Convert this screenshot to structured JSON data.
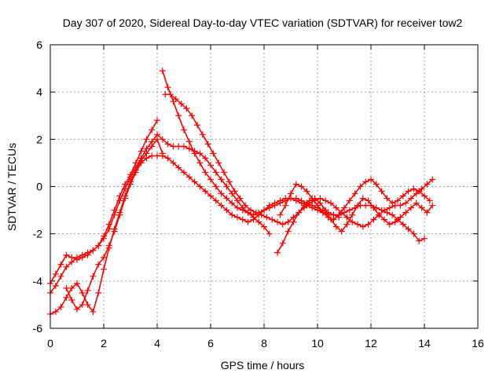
{
  "chart_data": {
    "type": "scatter",
    "title": "Day 307 of 2020, Sidereal Day-to-day VTEC variation (SDTVAR) for receiver tow2",
    "xlabel": "GPS time / hours",
    "ylabel": "SDTVAR / TECUs",
    "xlim": [
      0,
      16
    ],
    "ylim": [
      -6,
      6
    ],
    "x_ticks": [
      "0",
      "2",
      "4",
      "6",
      "8",
      "10",
      "12",
      "14",
      "16"
    ],
    "y_ticks": [
      "-6",
      "-4",
      "-2",
      "0",
      "2",
      "4",
      "6"
    ],
    "grid": true,
    "marker": "+",
    "color": "#ff0000",
    "series": [
      {
        "x": [
          0.0,
          0.2,
          0.4,
          0.6,
          0.8,
          1.0,
          1.2,
          1.4,
          1.6,
          1.8,
          2.0,
          2.2,
          2.4,
          2.6,
          2.8,
          3.0,
          3.2,
          3.4,
          3.6,
          3.8,
          4.0
        ],
        "y": [
          -4.1,
          -3.7,
          -3.3,
          -2.9,
          -3.0,
          -3.1,
          -3.0,
          -2.9,
          -2.7,
          -2.5,
          -2.1,
          -1.6,
          -1.0,
          -0.4,
          0.1,
          0.5,
          1.0,
          1.5,
          2.0,
          2.4,
          2.8
        ]
      },
      {
        "x": [
          0.0,
          0.2,
          0.4,
          0.6,
          0.8,
          1.0,
          1.2,
          1.4,
          1.6,
          1.8,
          2.0,
          2.2,
          2.4,
          2.6,
          2.8,
          3.0,
          3.2,
          3.4,
          3.6,
          3.8,
          4.0,
          4.2,
          4.4,
          4.6,
          4.8,
          5.0,
          5.2,
          5.4,
          5.6,
          5.8,
          6.0,
          6.2,
          6.4,
          6.6,
          6.8,
          7.0,
          7.2,
          7.4,
          7.6,
          7.8,
          8.0,
          8.2
        ],
        "y": [
          -4.5,
          -4.2,
          -3.8,
          -3.4,
          -3.2,
          -3.0,
          -2.9,
          -2.8,
          -2.7,
          -2.5,
          -2.2,
          -1.8,
          -1.2,
          -0.6,
          -0.1,
          0.4,
          0.8,
          1.2,
          1.6,
          1.9,
          2.2,
          2.0,
          1.8,
          1.7,
          1.7,
          1.7,
          1.6,
          1.5,
          1.4,
          1.2,
          0.9,
          0.6,
          0.3,
          0.0,
          -0.3,
          -0.6,
          -0.9,
          -1.1,
          -1.3,
          -1.5,
          -1.7,
          -2.0
        ]
      },
      {
        "x": [
          0.0,
          0.2,
          0.4,
          0.6,
          0.8,
          1.0,
          1.2,
          1.4,
          1.6,
          1.8,
          2.0,
          2.2,
          2.4,
          2.6,
          2.8,
          3.0,
          3.2,
          3.4,
          3.6,
          3.8,
          4.0,
          4.2
        ],
        "y": [
          -5.4,
          -5.3,
          -5.1,
          -4.7,
          -4.3,
          -4.1,
          -4.5,
          -5.0,
          -5.3,
          -4.5,
          -3.5,
          -2.6,
          -1.8,
          -1.1,
          -0.4,
          0.2,
          0.7,
          1.1,
          1.4,
          1.7,
          2.0,
          1.4
        ]
      },
      {
        "x": [
          0.6,
          0.8,
          1.0,
          1.2,
          1.4,
          1.6,
          1.8,
          2.0,
          2.2,
          2.4,
          2.6,
          2.8,
          3.0,
          3.2,
          3.4,
          3.6,
          3.8,
          4.0,
          4.2,
          4.4,
          4.6,
          4.8,
          5.0,
          5.2,
          5.4,
          5.6,
          5.8,
          6.0,
          6.2,
          6.4,
          6.6,
          6.8,
          7.0,
          7.2,
          7.4,
          7.6,
          7.8,
          8.0,
          8.2,
          8.4,
          8.6,
          8.8,
          9.0,
          9.2,
          9.4,
          9.6,
          9.8,
          10.0,
          10.2,
          10.4,
          10.6,
          10.8
        ],
        "y": [
          -4.3,
          -4.8,
          -5.2,
          -5.0,
          -4.4,
          -3.8,
          -3.3,
          -3.0,
          -2.5,
          -1.9,
          -1.2,
          -0.5,
          0.1,
          0.6,
          1.0,
          1.2,
          1.3,
          1.3,
          1.3,
          1.2,
          1.0,
          0.8,
          0.6,
          0.4,
          0.2,
          0.0,
          -0.2,
          -0.4,
          -0.6,
          -0.8,
          -1.0,
          -1.2,
          -1.3,
          -1.4,
          -1.5,
          -1.4,
          -1.2,
          -1.0,
          -0.8,
          -0.7,
          -0.6,
          -0.5,
          -0.5,
          -0.6,
          -0.7,
          -0.8,
          -0.9,
          -1.0,
          -1.1,
          -1.2,
          -1.2,
          -1.3
        ]
      },
      {
        "x": [
          4.2,
          4.4,
          4.6,
          4.8,
          5.0,
          5.2,
          5.4,
          5.6,
          5.8,
          6.0,
          6.2,
          6.4,
          6.6,
          6.8,
          7.0,
          7.2,
          7.4,
          7.6,
          7.8,
          8.0,
          8.2,
          8.4,
          8.6,
          8.8,
          9.0,
          9.2,
          9.4,
          9.6,
          9.8,
          10.0,
          10.2,
          10.4,
          10.6,
          10.8,
          11.0,
          11.2,
          11.4,
          11.6,
          11.8,
          12.0,
          12.2,
          12.4,
          12.6,
          12.8,
          13.0,
          13.2,
          13.4,
          13.6,
          13.8,
          14.0
        ],
        "y": [
          4.9,
          4.2,
          3.6,
          3.0,
          2.4,
          1.9,
          1.4,
          1.0,
          0.6,
          0.3,
          0.0,
          -0.3,
          -0.5,
          -0.7,
          -0.9,
          -1.0,
          -1.1,
          -1.2,
          -1.1,
          -1.0,
          -0.9,
          -0.8,
          -0.7,
          -0.6,
          -0.5,
          -0.5,
          -0.6,
          -0.7,
          -0.8,
          -0.9,
          -1.0,
          -1.1,
          -1.2,
          -1.2,
          -1.1,
          -1.0,
          -0.9,
          -0.8,
          -0.8,
          -0.8,
          -0.9,
          -1.0,
          -1.1,
          -1.2,
          -1.4,
          -1.6,
          -1.8,
          -2.0,
          -2.3,
          -2.2
        ]
      },
      {
        "x": [
          4.3,
          4.5,
          4.7,
          4.9,
          5.1,
          5.3,
          5.5,
          5.7,
          5.9,
          6.1,
          6.3,
          6.5,
          6.7,
          6.9,
          7.1,
          7.3,
          7.5,
          7.7,
          7.9,
          8.1,
          8.3,
          8.5,
          8.7,
          8.9,
          9.1,
          9.3,
          9.5,
          9.7,
          9.9,
          10.1,
          10.3,
          10.5,
          10.7,
          10.9,
          11.1,
          11.3,
          11.5,
          11.7,
          11.9,
          12.1,
          12.3,
          12.5,
          12.7,
          12.9,
          13.1,
          13.3,
          13.5,
          13.7,
          13.9,
          14.1,
          14.3
        ],
        "y": [
          3.9,
          3.9,
          3.7,
          3.5,
          3.3,
          3.0,
          2.6,
          2.2,
          1.8,
          1.4,
          1.0,
          0.6,
          0.2,
          -0.2,
          -0.5,
          -0.8,
          -1.0,
          -1.1,
          -1.2,
          -1.3,
          -1.4,
          -1.5,
          -1.6,
          -1.5,
          -1.3,
          -1.1,
          -0.9,
          -0.7,
          -0.6,
          -0.5,
          -0.6,
          -0.7,
          -0.9,
          -1.1,
          -1.3,
          -1.5,
          -1.6,
          -1.7,
          -1.6,
          -1.4,
          -1.2,
          -1.0,
          -0.9,
          -0.8,
          -0.8,
          -0.7,
          -0.5,
          -0.3,
          -0.1,
          0.1,
          0.3
        ]
      },
      {
        "x": [
          8.5,
          8.7,
          8.9,
          9.1,
          9.3,
          9.5,
          9.7,
          9.9,
          10.1,
          10.3,
          10.5,
          10.7,
          10.9,
          11.1,
          11.3,
          11.5,
          11.7,
          11.9,
          12.1,
          12.3,
          12.5,
          12.7,
          12.9,
          13.1,
          13.3,
          13.5,
          13.7,
          13.9,
          14.1,
          14.3
        ],
        "y": [
          -2.8,
          -2.4,
          -1.9,
          -1.5,
          -1.1,
          -0.8,
          -0.6,
          -0.5,
          -0.7,
          -1.0,
          -1.4,
          -1.7,
          -1.9,
          -1.6,
          -1.2,
          -0.8,
          -0.5,
          -0.6,
          -0.9,
          -1.2,
          -1.4,
          -1.6,
          -1.5,
          -1.3,
          -1.1,
          -0.9,
          -0.7,
          -0.9,
          -1.1,
          -0.8
        ]
      },
      {
        "x": [
          8.6,
          8.8,
          9.0,
          9.2,
          9.4,
          9.6,
          9.8,
          10.0,
          10.2,
          10.4,
          10.6,
          10.8,
          11.0,
          11.2,
          11.4,
          11.6,
          11.8,
          12.0,
          12.2,
          12.4,
          12.6,
          12.8,
          13.0,
          13.2,
          13.4,
          13.6,
          13.8,
          14.0,
          14.2
        ],
        "y": [
          -1.2,
          -0.8,
          -0.3,
          0.1,
          0.0,
          -0.2,
          -0.5,
          -0.8,
          -1.1,
          -1.3,
          -1.4,
          -1.2,
          -0.9,
          -0.6,
          -0.3,
          0.0,
          0.2,
          0.3,
          0.1,
          -0.2,
          -0.5,
          -0.7,
          -0.6,
          -0.4,
          -0.2,
          -0.1,
          -0.2,
          -0.4,
          -0.6
        ]
      }
    ]
  }
}
